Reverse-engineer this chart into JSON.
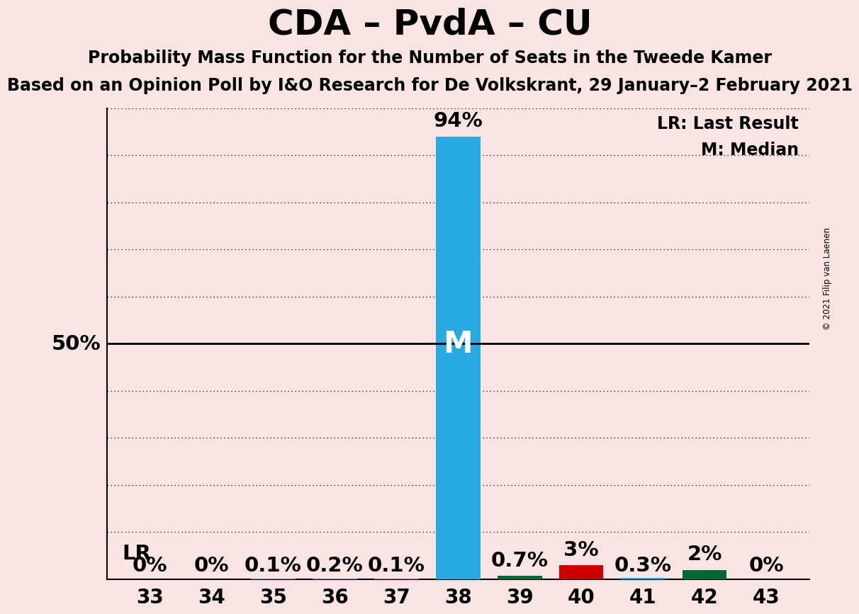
{
  "title": "CDA – PvdA – CU",
  "subtitle1": "Probability Mass Function for the Number of Seats in the Tweede Kamer",
  "subtitle2": "Based on an Opinion Poll by I&O Research for De Volkskrant, 29 January–2 February 2021",
  "copyright": "© 2021 Filip van Laenen",
  "background_color": "#f9e4e4",
  "seats": [
    33,
    34,
    35,
    36,
    37,
    38,
    39,
    40,
    41,
    42,
    43
  ],
  "probabilities": [
    0.0,
    0.0,
    0.001,
    0.002,
    0.001,
    0.94,
    0.007,
    0.03,
    0.003,
    0.02,
    0.0
  ],
  "bar_colors": [
    "#29abe2",
    "#29abe2",
    "#29abe2",
    "#29abe2",
    "#29abe2",
    "#29abe2",
    "#006633",
    "#cc0000",
    "#29abe2",
    "#006633",
    "#29abe2"
  ],
  "prob_labels": [
    "0%",
    "0%",
    "0.1%",
    "0.2%",
    "0.1%",
    "94%",
    "0.7%",
    "3%",
    "0.3%",
    "2%",
    "0%"
  ],
  "median_seat": 38,
  "lr_seat": 38,
  "lr_label": "LR",
  "legend_lr": "LR: Last Result",
  "legend_m": "M: Median",
  "ylabel_50": "50%",
  "ytick_50": 0.5,
  "grid_color": "#000000",
  "title_fontsize": 36,
  "subtitle1_fontsize": 17,
  "subtitle2_fontsize": 17,
  "annotation_fontsize": 21,
  "tick_fontsize": 20,
  "legend_fontsize": 17
}
